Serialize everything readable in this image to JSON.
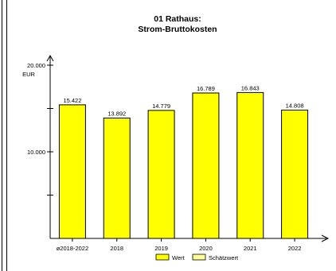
{
  "chart_data": {
    "type": "bar",
    "title": "01 Rathaus:",
    "subtitle": "Strom-Bruttokosten",
    "ylabel": "EUR",
    "categories": [
      "ø2018-2022",
      "2018",
      "2019",
      "2020",
      "2021",
      "2022"
    ],
    "series": [
      {
        "name": "Wert",
        "values": [
          15422,
          13892,
          14779,
          16789,
          16843,
          14808
        ]
      }
    ],
    "data_labels": [
      "15.422",
      "13.892",
      "14.779",
      "16.789",
      "16.843",
      "14.808"
    ],
    "ylim": [
      0,
      21000
    ],
    "yticks": [
      10000,
      20000
    ],
    "ytick_labels": [
      "10.000",
      "20.000"
    ],
    "grid": false,
    "legend": {
      "entries": [
        "Wert",
        "Schätzwert"
      ],
      "position": "bottom-center"
    },
    "colors": {
      "bar": "#ffff00",
      "bar_edge": "#000000",
      "estimate": "#ffff99",
      "axis": "#000000"
    }
  }
}
